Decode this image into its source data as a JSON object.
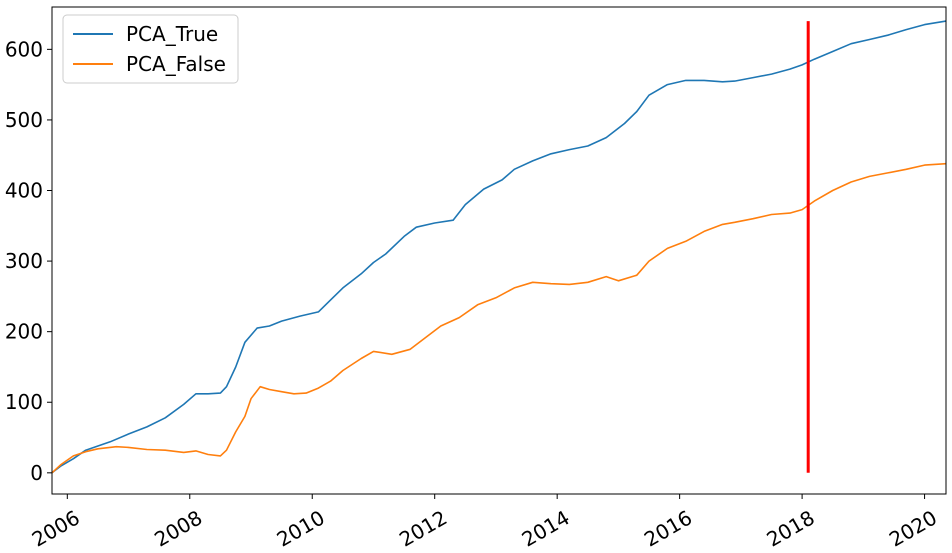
{
  "chart_data": {
    "type": "line",
    "title": "",
    "xlabel": "",
    "ylabel": "",
    "xlim": [
      2005.75,
      2020.35
    ],
    "ylim": [
      -30,
      660
    ],
    "grid": false,
    "legend_position": "top-left",
    "y_ticks": [
      0,
      100,
      200,
      300,
      400,
      500,
      600
    ],
    "x_ticks": [
      2006,
      2008,
      2010,
      2012,
      2014,
      2016,
      2018,
      2020
    ],
    "x_tick_labels": [
      "2006",
      "2008",
      "2010",
      "2012",
      "2014",
      "2016",
      "2018",
      "2020"
    ],
    "series": [
      {
        "name": "PCA_True",
        "color": "#1f77b4",
        "x": [
          2005.75,
          2005.9,
          2006.1,
          2006.3,
          2006.5,
          2006.7,
          2007.0,
          2007.3,
          2007.6,
          2007.9,
          2008.1,
          2008.3,
          2008.5,
          2008.6,
          2008.75,
          2008.9,
          2009.1,
          2009.3,
          2009.5,
          2009.8,
          2010.1,
          2010.3,
          2010.5,
          2010.8,
          2011.0,
          2011.2,
          2011.5,
          2011.7,
          2012.0,
          2012.3,
          2012.5,
          2012.8,
          2013.1,
          2013.3,
          2013.6,
          2013.9,
          2014.2,
          2014.5,
          2014.8,
          2015.1,
          2015.3,
          2015.5,
          2015.8,
          2016.1,
          2016.4,
          2016.7,
          2016.9,
          2017.2,
          2017.5,
          2017.8,
          2018.0,
          2018.2,
          2018.5,
          2018.8,
          2019.1,
          2019.4,
          2019.7,
          2020.0,
          2020.35
        ],
        "values": [
          0,
          10,
          20,
          32,
          38,
          44,
          55,
          65,
          78,
          97,
          112,
          112,
          113,
          122,
          150,
          185,
          205,
          208,
          215,
          222,
          228,
          245,
          262,
          282,
          298,
          310,
          335,
          348,
          354,
          358,
          380,
          402,
          415,
          430,
          442,
          452,
          458,
          463,
          475,
          495,
          512,
          535,
          550,
          556,
          556,
          554,
          555,
          560,
          565,
          572,
          578,
          586,
          597,
          608,
          614,
          620,
          628,
          635,
          640
        ]
      },
      {
        "name": "PCA_False",
        "color": "#ff7f0e",
        "x": [
          2005.75,
          2005.9,
          2006.1,
          2006.3,
          2006.5,
          2006.8,
          2007.0,
          2007.3,
          2007.6,
          2007.9,
          2008.1,
          2008.3,
          2008.5,
          2008.6,
          2008.75,
          2008.9,
          2009.0,
          2009.15,
          2009.3,
          2009.5,
          2009.7,
          2009.9,
          2010.1,
          2010.3,
          2010.5,
          2010.8,
          2011.0,
          2011.3,
          2011.6,
          2011.9,
          2012.1,
          2012.4,
          2012.7,
          2013.0,
          2013.3,
          2013.6,
          2013.9,
          2014.2,
          2014.5,
          2014.8,
          2015.0,
          2015.3,
          2015.5,
          2015.8,
          2016.1,
          2016.4,
          2016.7,
          2016.9,
          2017.2,
          2017.5,
          2017.8,
          2018.0,
          2018.2,
          2018.5,
          2018.8,
          2019.1,
          2019.4,
          2019.7,
          2020.0,
          2020.35
        ],
        "values": [
          0,
          12,
          24,
          30,
          34,
          37,
          36,
          33,
          32,
          29,
          31,
          26,
          24,
          32,
          58,
          80,
          105,
          122,
          118,
          115,
          112,
          113,
          120,
          130,
          145,
          162,
          172,
          168,
          175,
          195,
          208,
          220,
          238,
          248,
          262,
          270,
          268,
          267,
          270,
          278,
          272,
          280,
          300,
          318,
          328,
          342,
          352,
          355,
          360,
          366,
          368,
          373,
          385,
          400,
          412,
          420,
          425,
          430,
          436,
          438
        ]
      },
      {
        "name": "",
        "color": "#ff0000",
        "x": [
          2018.1,
          2018.1
        ],
        "values": [
          0,
          640
        ]
      }
    ]
  },
  "legend": {
    "items": [
      {
        "label": "PCA_True",
        "color": "#1f77b4"
      },
      {
        "label": "PCA_False",
        "color": "#ff7f0e"
      }
    ]
  }
}
